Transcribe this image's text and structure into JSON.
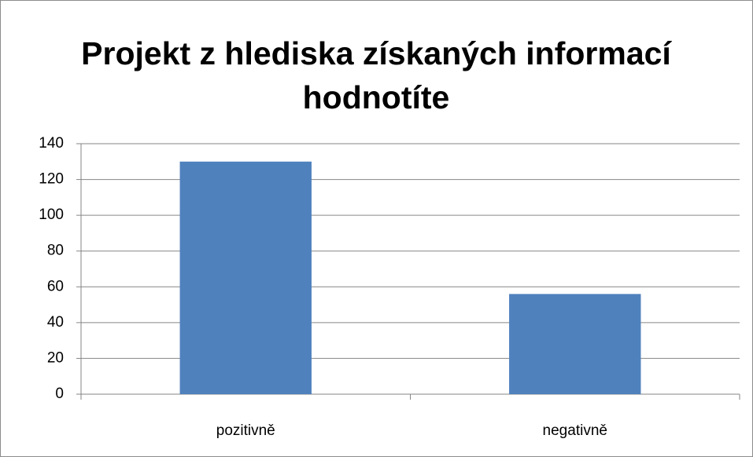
{
  "chart_data": {
    "type": "bar",
    "title": "Projekt z hlediska získaných informací hodnotíte",
    "categories": [
      "pozitivně",
      "negativně"
    ],
    "values": [
      130,
      56
    ],
    "color": "#4f81bd",
    "ylim": [
      0,
      140
    ],
    "yticks": [
      0,
      20,
      40,
      60,
      80,
      100,
      120,
      140
    ],
    "grid": true
  }
}
